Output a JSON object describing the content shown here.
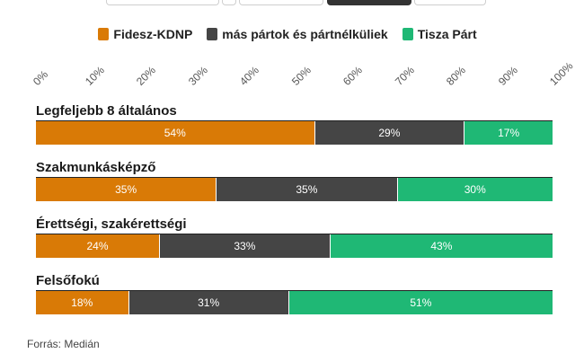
{
  "chart_data": {
    "type": "bar",
    "orientation": "horizontal",
    "stacked": true,
    "xlim": [
      0,
      100
    ],
    "tick_labels": [
      "0%",
      "10%",
      "20%",
      "30%",
      "40%",
      "50%",
      "60%",
      "70%",
      "80%",
      "90%",
      "100%"
    ],
    "tick_values": [
      0,
      10,
      20,
      30,
      40,
      50,
      60,
      70,
      80,
      90,
      100
    ],
    "categories": [
      "Legfeljebb 8 általános",
      "Szakmunkásképző",
      "Érettségi, szakérettségi",
      "Felsőfokú"
    ],
    "series": [
      {
        "name": "Fidesz-KDNP",
        "color": "#d97a06",
        "values": [
          54,
          35,
          24,
          18
        ]
      },
      {
        "name": "más pártok és pártnélküliek",
        "color": "#454545",
        "values": [
          29,
          35,
          33,
          31
        ]
      },
      {
        "name": "Tisza Párt",
        "color": "#1fb875",
        "values": [
          17,
          30,
          43,
          51
        ]
      }
    ],
    "value_suffix": "%"
  },
  "source": "Forrás: Medián"
}
